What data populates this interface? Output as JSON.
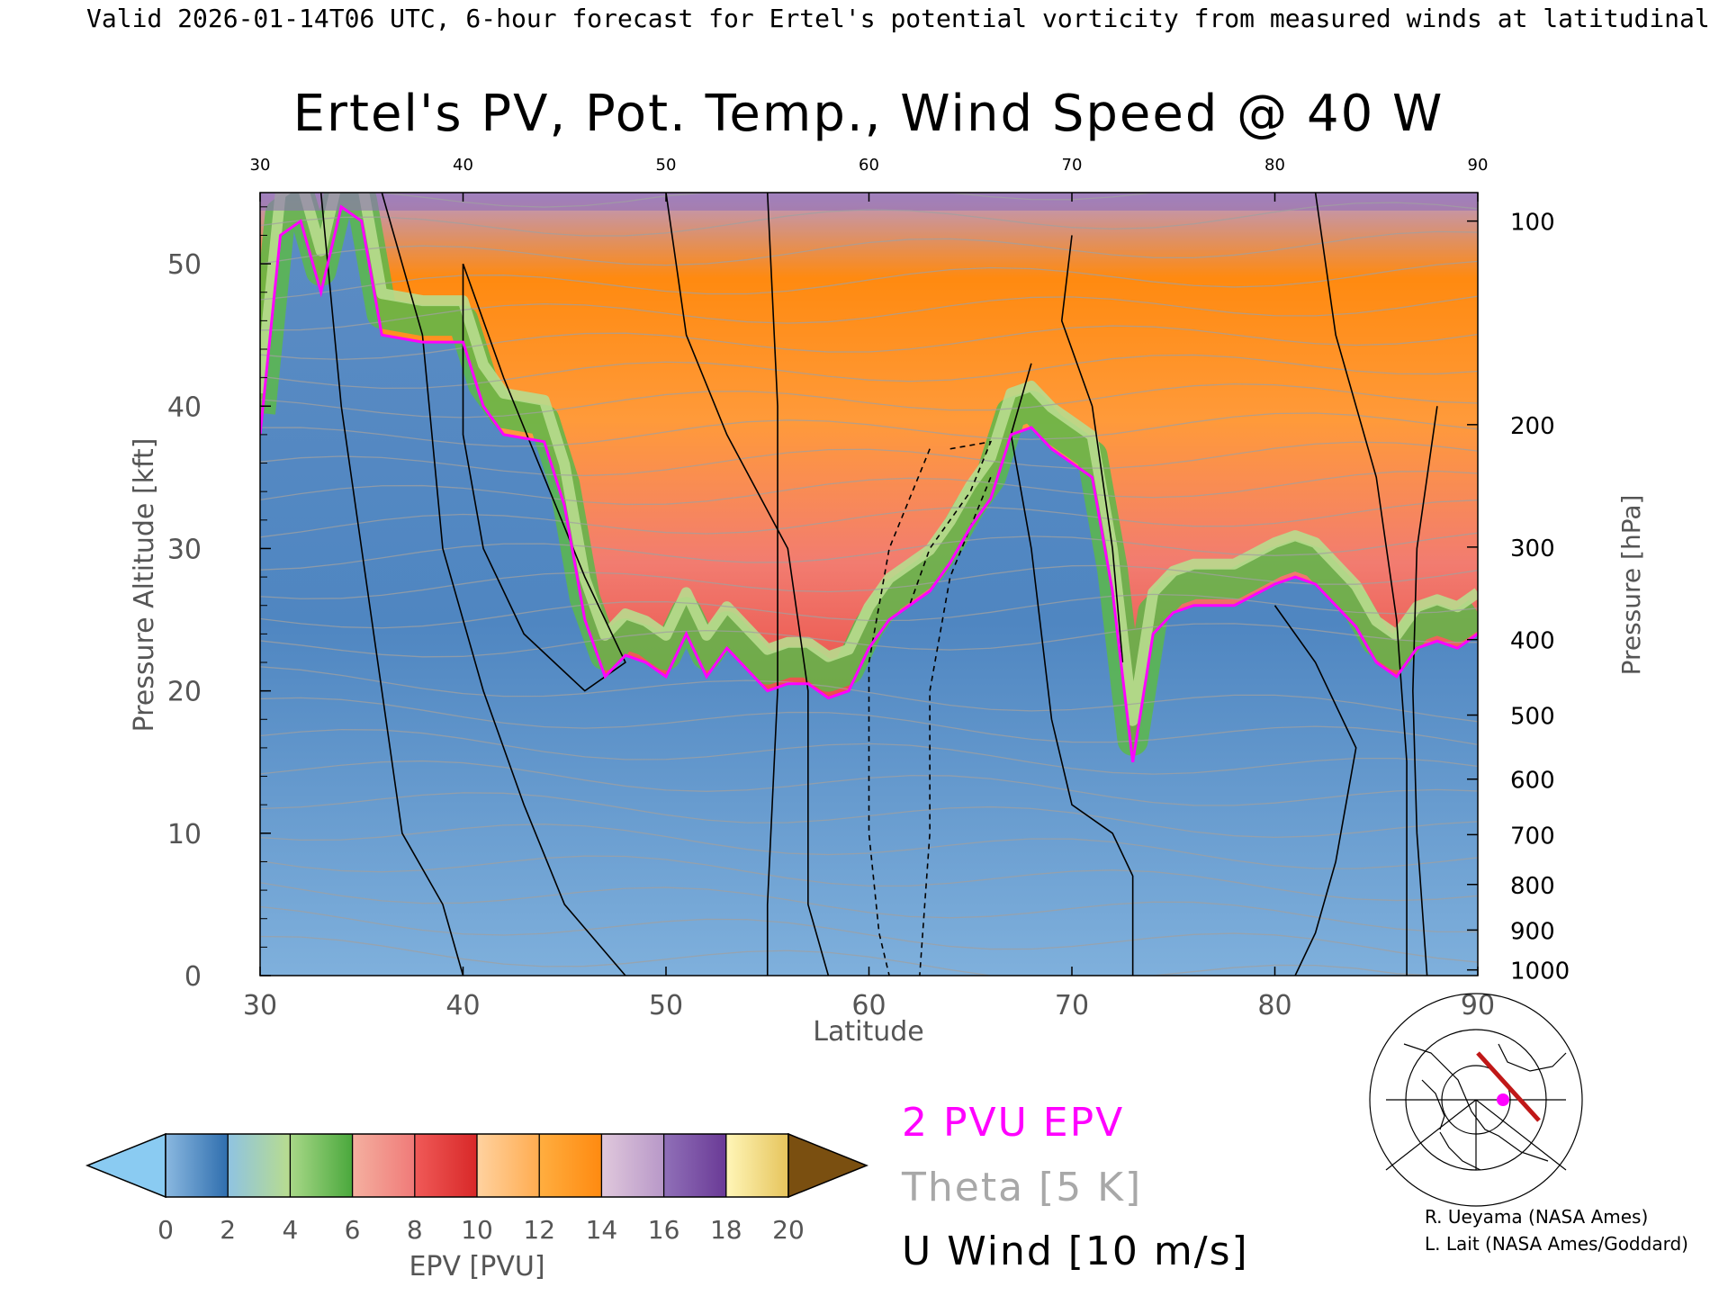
{
  "header": {
    "caption": "Valid 2026-01-14T06 UTC, 6-hour forecast for Ertel's potential vorticity from measured winds at latitudinal -- NCEP"
  },
  "chart_data": {
    "type": "heatmap",
    "title": "Ertel's PV, Pot. Temp., Wind Speed @ 40 W",
    "xlabel": "Latitude",
    "ylabel_left": "Pressure Altitude [kft]",
    "ylabel_right": "Pressure [hPa]",
    "xlim": [
      30,
      90
    ],
    "ylim_kft": [
      0,
      55
    ],
    "x_ticks": [
      "30",
      "40",
      "50",
      "60",
      "70",
      "80",
      "90"
    ],
    "y_ticks_left": [
      "0",
      "10",
      "20",
      "30",
      "40",
      "50"
    ],
    "pressure_levels": [
      {
        "label": "100",
        "kft": 53.0
      },
      {
        "label": "200",
        "kft": 38.7
      },
      {
        "label": "300",
        "kft": 30.1
      },
      {
        "label": "400",
        "kft": 23.6
      },
      {
        "label": "500",
        "kft": 18.3
      },
      {
        "label": "600",
        "kft": 13.8
      },
      {
        "label": "700",
        "kft": 9.9
      },
      {
        "label": "800",
        "kft": 6.4
      },
      {
        "label": "900",
        "kft": 3.2
      },
      {
        "label": "1000",
        "kft": 0.4
      }
    ],
    "colorbar": {
      "label": "EPV [PVU]",
      "ticks": [
        "0",
        "2",
        "4",
        "6",
        "8",
        "10",
        "12",
        "14",
        "16",
        "18",
        "20"
      ],
      "colors": [
        "#3a78b6",
        "#8ecf7c",
        "#4aa83c",
        "#f07a78",
        "#e03030",
        "#ffac50",
        "#ff8a10",
        "#b898c8",
        "#6a3a96",
        "#f4e482"
      ],
      "under_color": "#8acbf2",
      "over_color": "#7a4f10"
    },
    "tropopause_pvu2_kft": [
      [
        30,
        38
      ],
      [
        31,
        52
      ],
      [
        32,
        53
      ],
      [
        33,
        48
      ],
      [
        34,
        54
      ],
      [
        35,
        53
      ],
      [
        36,
        45
      ],
      [
        38,
        44.5
      ],
      [
        40,
        44.5
      ],
      [
        41,
        40
      ],
      [
        42,
        38
      ],
      [
        44,
        37.5
      ],
      [
        45,
        33
      ],
      [
        46,
        25
      ],
      [
        47,
        21
      ],
      [
        48,
        22.5
      ],
      [
        49,
        22
      ],
      [
        50,
        21
      ],
      [
        51,
        24
      ],
      [
        52,
        21
      ],
      [
        53,
        23
      ],
      [
        54,
        21.5
      ],
      [
        55,
        20
      ],
      [
        56,
        20.5
      ],
      [
        57,
        20.5
      ],
      [
        58,
        19.5
      ],
      [
        59,
        20
      ],
      [
        60,
        23
      ],
      [
        61,
        25
      ],
      [
        62,
        26
      ],
      [
        63,
        27
      ],
      [
        64,
        29
      ],
      [
        65,
        31.5
      ],
      [
        66,
        33.5
      ],
      [
        67,
        38
      ],
      [
        68,
        38.5
      ],
      [
        69,
        37
      ],
      [
        70,
        36
      ],
      [
        71,
        35
      ],
      [
        72,
        27
      ],
      [
        73,
        15
      ],
      [
        74,
        24
      ],
      [
        75,
        25.5
      ],
      [
        76,
        26
      ],
      [
        78,
        26
      ],
      [
        80,
        27.5
      ],
      [
        81,
        28
      ],
      [
        82,
        27.5
      ],
      [
        84,
        24.5
      ],
      [
        85,
        22
      ],
      [
        86,
        21
      ],
      [
        87,
        23
      ],
      [
        88,
        23.5
      ],
      [
        89,
        23
      ],
      [
        90,
        24
      ]
    ],
    "u_wind_contour_levels": [
      "-10",
      "0",
      "10",
      "20",
      "30"
    ],
    "legend": {
      "pvu": "2 PVU EPV",
      "theta": "Theta [5 K]",
      "uwind": "U Wind [10 m/s]"
    },
    "colors": {
      "pvu_line": "#ff00ff",
      "theta": "#a0a0a0",
      "uwind": "#000000"
    }
  },
  "map": {
    "section_line_color": "#c01818",
    "marker_color": "#ff00ff"
  },
  "credits": [
    "R. Ueyama (NASA Ames)",
    "L. Lait (NASA Ames/Goddard)"
  ]
}
